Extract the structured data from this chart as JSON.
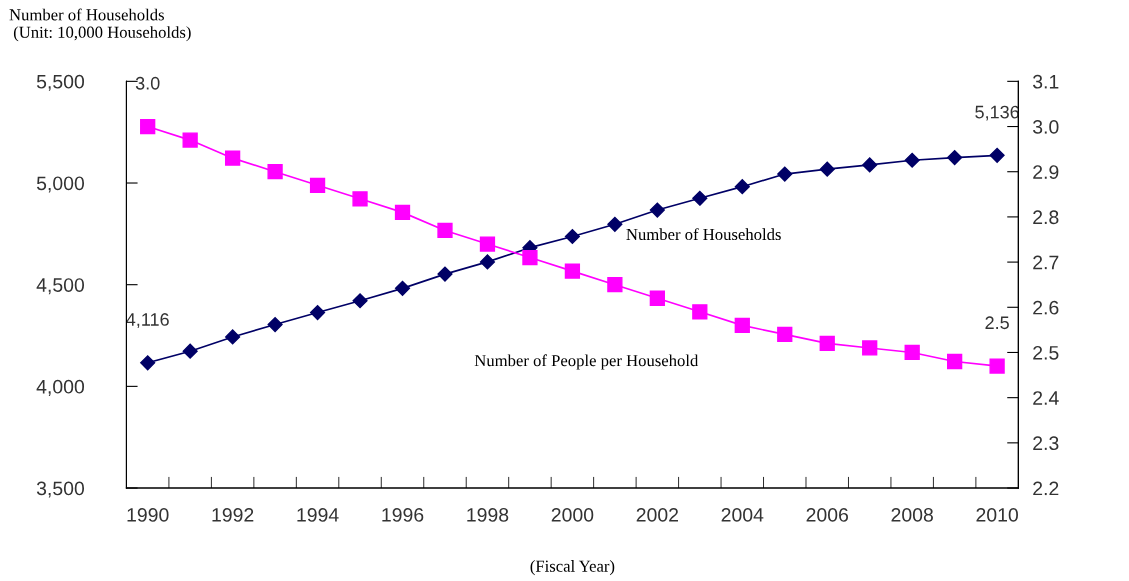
{
  "chart_data": {
    "type": "line",
    "ylabel": "Number of Households\n (Unit: 10,000 Households)",
    "xlabel": "(Fiscal Year)",
    "categories": [
      "1990",
      null,
      "1992",
      null,
      "1994",
      null,
      "1996",
      null,
      "1998",
      null,
      "2000",
      null,
      "2002",
      null,
      "2004",
      null,
      "2006",
      null,
      "2008",
      null,
      "2010"
    ],
    "series": [
      {
        "name": "Number of Households",
        "color": "#000066",
        "marker": "diamond",
        "values": [
          4116,
          4173,
          4243,
          4304,
          4363,
          4421,
          4482,
          4552,
          4612,
          4682,
          4737,
          4797,
          4867,
          4925,
          4982,
          5044,
          5068,
          5089,
          5112,
          5125,
          5136
        ],
        "value_labels": [
          "4,116",
          null,
          null,
          null,
          null,
          null,
          null,
          null,
          null,
          null,
          null,
          null,
          null,
          null,
          null,
          null,
          null,
          null,
          null,
          null,
          "5,136"
        ]
      },
      {
        "name": "Number of People per Household",
        "color": "#ff00ff",
        "marker": "square",
        "axis": "y2",
        "values": [
          3.0,
          2.97,
          2.93,
          2.9,
          2.87,
          2.84,
          2.81,
          2.77,
          2.74,
          2.71,
          2.68,
          2.65,
          2.62,
          2.59,
          2.56,
          2.54,
          2.52,
          2.51,
          2.5,
          2.48,
          2.47
        ],
        "value_labels": [
          "3.0",
          null,
          null,
          null,
          null,
          null,
          null,
          null,
          null,
          null,
          null,
          null,
          null,
          null,
          null,
          null,
          null,
          null,
          null,
          null,
          "2.5"
        ]
      }
    ],
    "ylim": [
      3500,
      5500
    ],
    "yticks": [
      {
        "value": 3500,
        "label": "3,500"
      },
      {
        "value": 4000,
        "label": "4,000"
      },
      {
        "value": 4500,
        "label": "4,500"
      },
      {
        "value": 5000,
        "label": "5,000"
      },
      {
        "value": 5500,
        "label": "5,500"
      }
    ],
    "y2lim": [
      2.2,
      3.1
    ],
    "y2ticks": [
      {
        "value": 2.2,
        "label": "2.2"
      },
      {
        "value": 2.3,
        "label": "2.3"
      },
      {
        "value": 2.4,
        "label": "2.4"
      },
      {
        "value": 2.5,
        "label": "2.5"
      },
      {
        "value": 2.6,
        "label": "2.6"
      },
      {
        "value": 2.7,
        "label": "2.7"
      },
      {
        "value": 2.8,
        "label": "2.8"
      },
      {
        "value": 2.9,
        "label": "2.9"
      },
      {
        "value": 3.0,
        "label": "3.0"
      },
      {
        "value": 3.1,
        "label": "3.1"
      }
    ],
    "grid": false,
    "legend": false,
    "line_style": "solid"
  }
}
